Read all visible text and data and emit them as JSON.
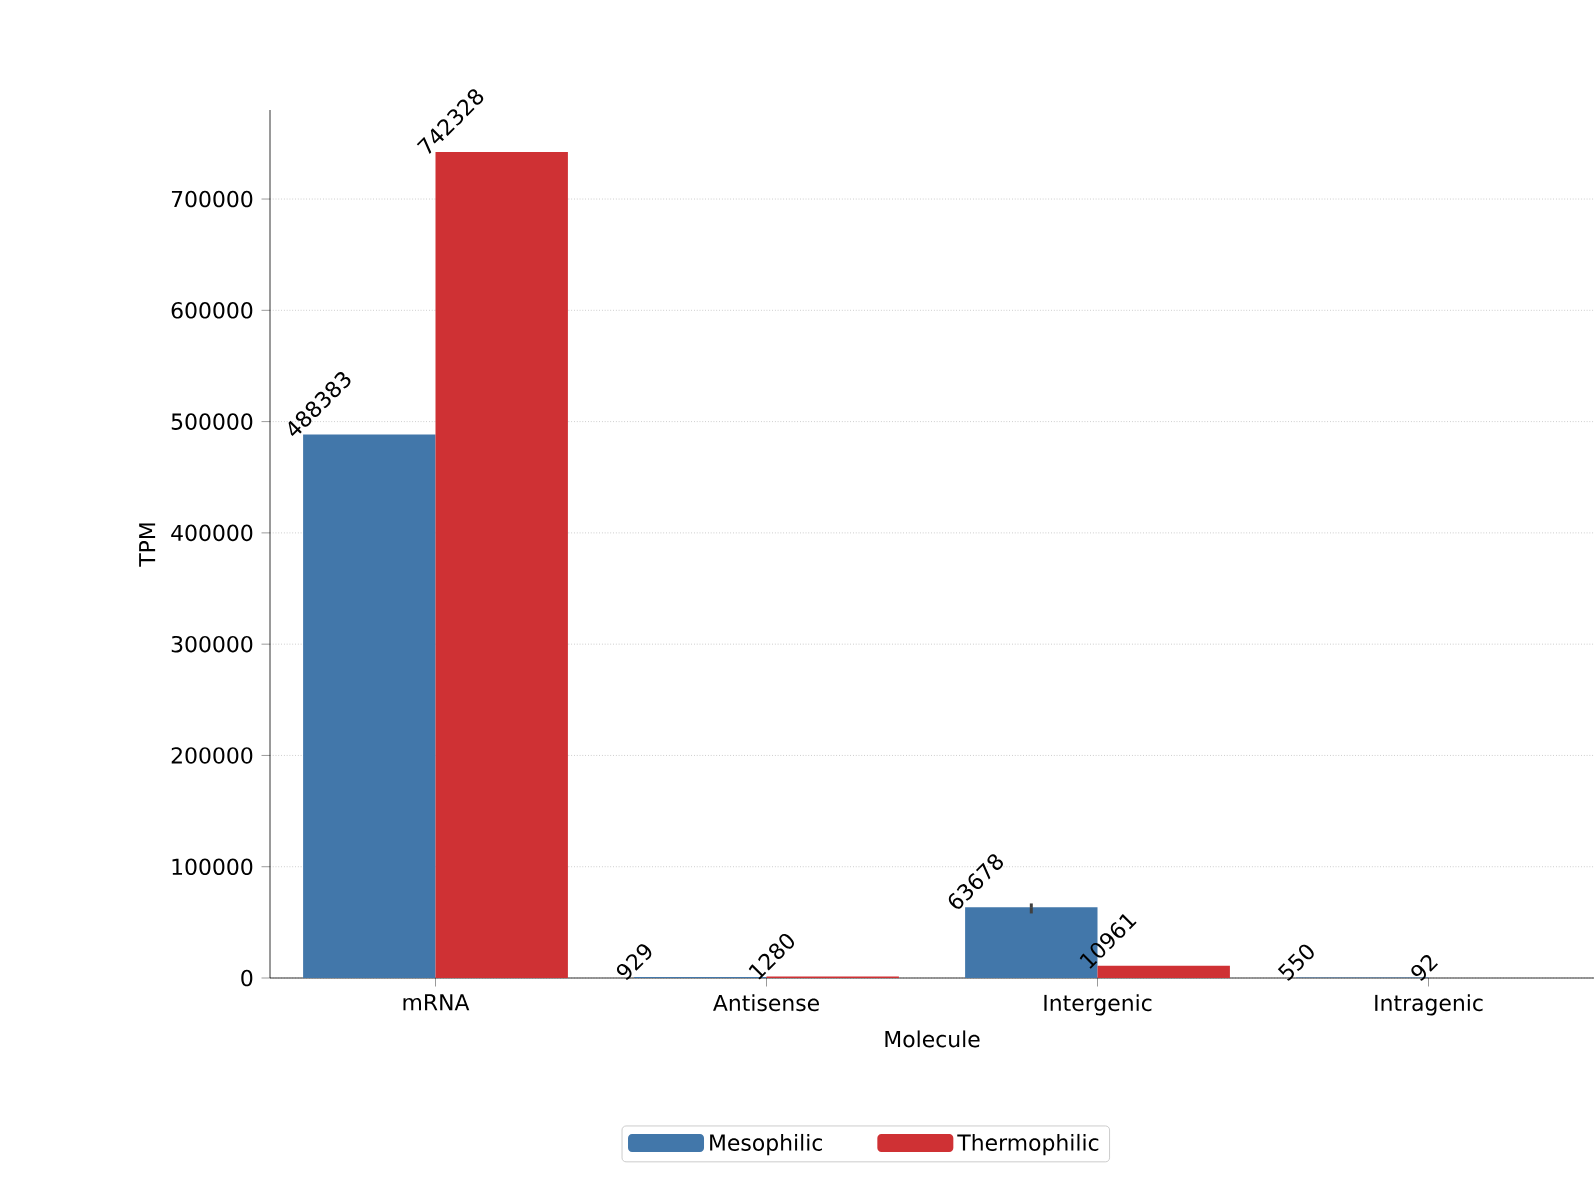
{
  "chart_data": {
    "type": "bar",
    "xlabel": "Molecule",
    "ylabel": "TPM",
    "categories": [
      "mRNA",
      "Antisense",
      "Intergenic",
      "Intragenic"
    ],
    "series": [
      {
        "name": "Mesophilic",
        "color": "#4277aa",
        "values": [
          488383,
          929,
          63678,
          550
        ],
        "errors": [
          null,
          null,
          [
            58000,
            67000
          ],
          null
        ]
      },
      {
        "name": "Thermophilic",
        "color": "#cf3134",
        "values": [
          742328,
          1280,
          10961,
          92
        ]
      }
    ],
    "ylim": [
      0,
      780000
    ],
    "yticks": [
      0,
      100000,
      200000,
      300000,
      400000,
      500000,
      600000,
      700000
    ],
    "grid": "y",
    "legend": "bottom",
    "data_labels": true
  }
}
